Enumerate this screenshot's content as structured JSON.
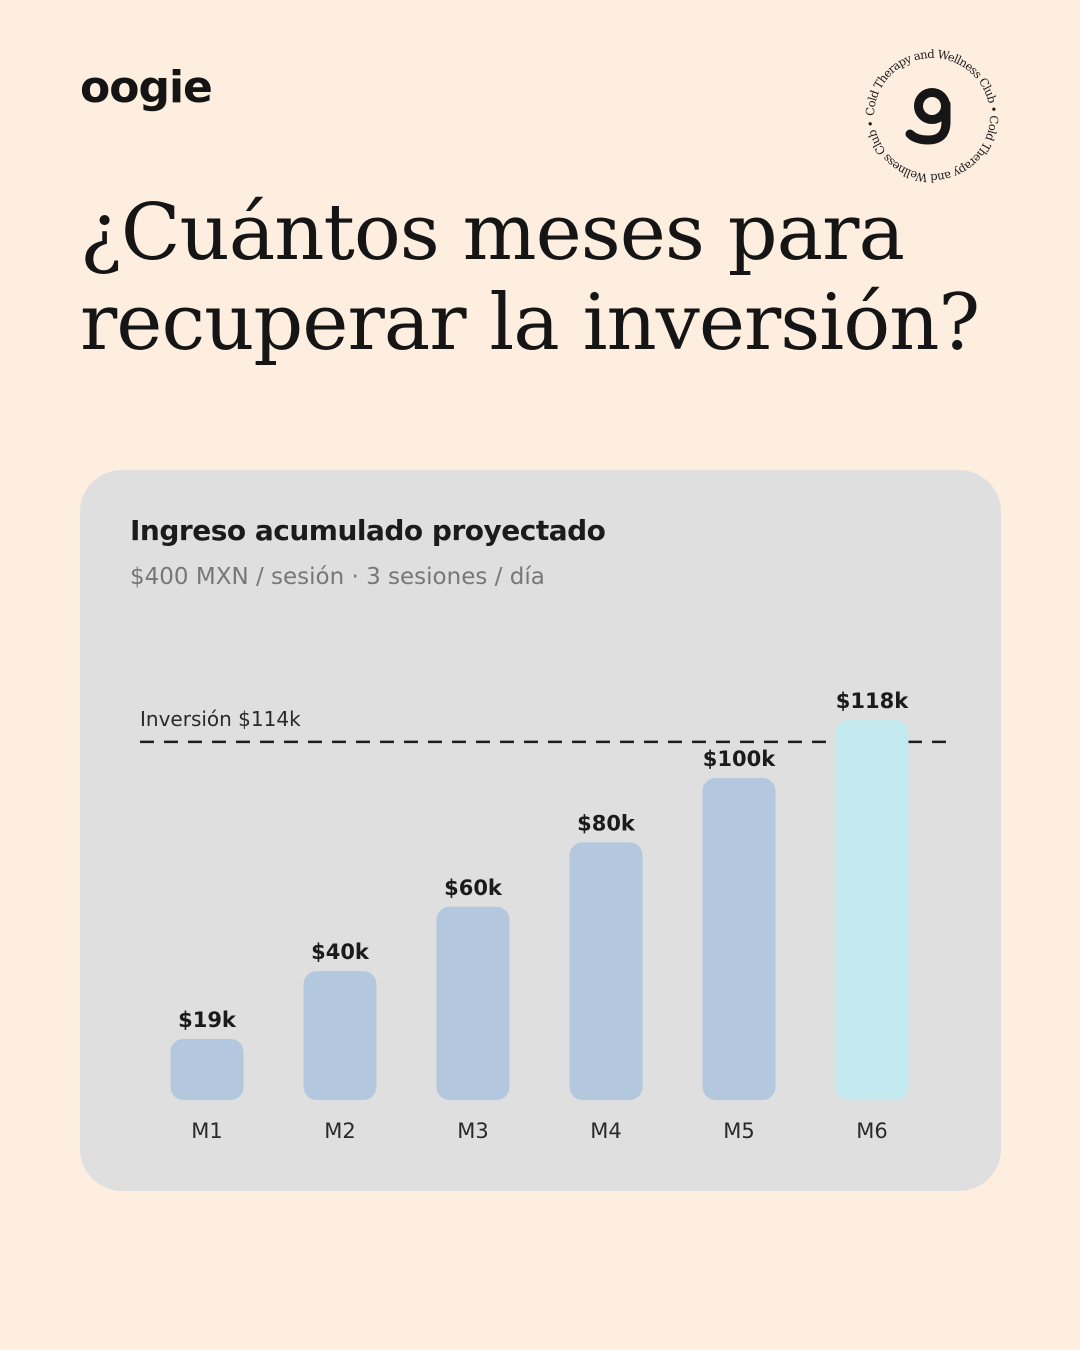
{
  "brand": {
    "logo_text": "oogie",
    "badge_ring_text": "Cold Therapy and Wellness Club • Cold Therapy and Wellness Club •",
    "badge_icon": "g-monogram-icon"
  },
  "headline": {
    "line1": "¿Cuántos meses para",
    "line2": "recuperar la inversión?"
  },
  "card": {
    "title": "Ingreso acumulado proyectado",
    "subtitle": "$400 MXN / sesión · 3 sesiones / día"
  },
  "colors": {
    "background": "#fdeee0",
    "card": "#e0dfdf",
    "bar": "#b3c8df",
    "bar_highlight": "#c3e8ee",
    "text": "#1a1a1a"
  },
  "chart_data": {
    "type": "bar",
    "title": "Ingreso acumulado proyectado",
    "subtitle": "$400 MXN / sesión · 3 sesiones / día",
    "categories": [
      "M1",
      "M2",
      "M3",
      "M4",
      "M5",
      "M6"
    ],
    "values": [
      19,
      40,
      60,
      80,
      100,
      118
    ],
    "value_labels": [
      "$19k",
      "$40k",
      "$60k",
      "$80k",
      "$100k",
      "$118k"
    ],
    "unit": "k MXN",
    "highlight_index": 5,
    "reference_line": {
      "value": 114,
      "label": "Inversión $114k",
      "style": "dashed"
    },
    "ylim": [
      0,
      118
    ],
    "grid": false,
    "legend": "none"
  }
}
